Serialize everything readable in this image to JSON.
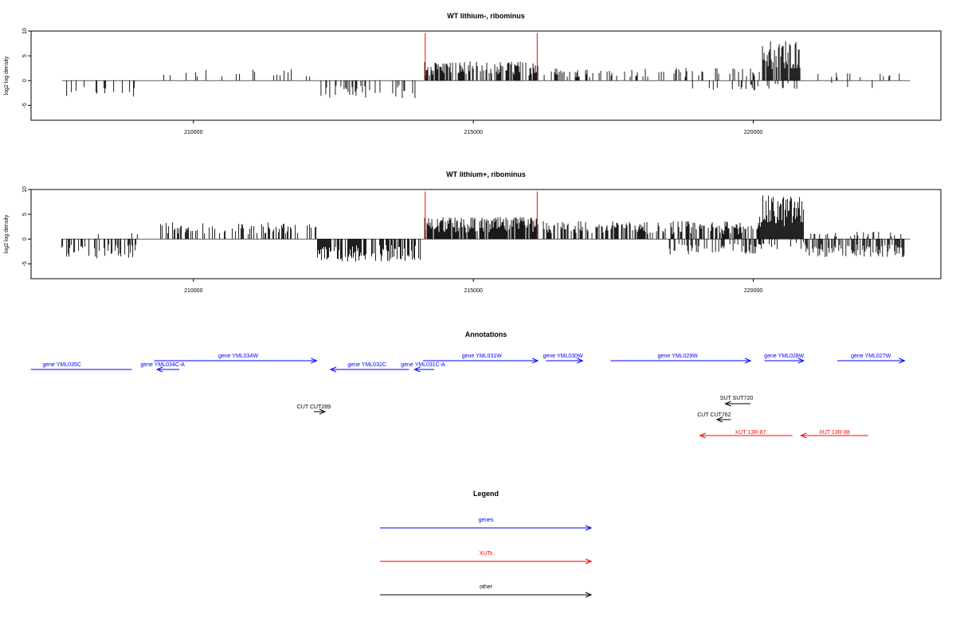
{
  "chart_data": [
    {
      "type": "bar",
      "title": "WT lithium-, ribominus",
      "ylabel": "log2 log density",
      "xlabel": "",
      "ylim": [
        -8,
        10
      ],
      "xlim": [
        207100,
        223350
      ],
      "xticks": [
        "210000",
        "215000",
        "220000"
      ],
      "yticks": [
        "-5",
        "0",
        "5",
        "10"
      ],
      "markers": [
        214140,
        216140
      ],
      "series": [
        {
          "segments": [
            {
              "from": 207650,
              "to": 209000,
              "sign": -1,
              "amp": 2.6,
              "density": 0.5
            },
            {
              "from": 209400,
              "to": 212200,
              "sign": 1,
              "amp": 1.8,
              "density": 0.3
            },
            {
              "from": 212250,
              "to": 214050,
              "sign": -1,
              "amp": 2.8,
              "density": 0.6
            },
            {
              "from": 214130,
              "to": 216160,
              "sign": 1,
              "amp": 3.0,
              "density": 1.6
            },
            {
              "from": 216250,
              "to": 220150,
              "sign": 1,
              "amp": 2.0,
              "density": 0.55
            },
            {
              "from": 218900,
              "to": 220100,
              "sign": -1,
              "amp": 2.0,
              "density": 0.4
            },
            {
              "from": 220150,
              "to": 220850,
              "sign": 1,
              "amp": 6.5,
              "density": 2.2
            },
            {
              "from": 220250,
              "to": 220850,
              "sign": -1,
              "amp": 1.3,
              "density": 0.4
            },
            {
              "from": 220900,
              "to": 222700,
              "sign": 1,
              "amp": 1.4,
              "density": 0.25
            },
            {
              "from": 221100,
              "to": 222300,
              "sign": -1,
              "amp": 1.2,
              "density": 0.15
            }
          ]
        }
      ]
    },
    {
      "type": "bar",
      "title": "WT lithium+, ribominus",
      "ylabel": "log2 log density",
      "xlabel": "",
      "ylim": [
        -8,
        10
      ],
      "xlim": [
        207100,
        223350
      ],
      "xticks": [
        "210000",
        "215000",
        "220000"
      ],
      "yticks": [
        "-5",
        "0",
        "5",
        "10"
      ],
      "markers": [
        214140,
        216140
      ],
      "series": [
        {
          "segments": [
            {
              "from": 207650,
              "to": 209000,
              "sign": -1,
              "amp": 3.0,
              "density": 0.9
            },
            {
              "from": 208300,
              "to": 209000,
              "sign": 1,
              "amp": 1.2,
              "density": 0.2
            },
            {
              "from": 209400,
              "to": 212200,
              "sign": 1,
              "amp": 2.6,
              "density": 0.9
            },
            {
              "from": 212200,
              "to": 214050,
              "sign": -1,
              "amp": 3.5,
              "density": 1.6
            },
            {
              "from": 214130,
              "to": 216160,
              "sign": 1,
              "amp": 3.4,
              "density": 2.2
            },
            {
              "from": 216250,
              "to": 220100,
              "sign": 1,
              "amp": 2.8,
              "density": 1.5
            },
            {
              "from": 218500,
              "to": 220100,
              "sign": -1,
              "amp": 2.4,
              "density": 1.0
            },
            {
              "from": 220100,
              "to": 220900,
              "sign": 1,
              "amp": 6.8,
              "density": 3.0
            },
            {
              "from": 220100,
              "to": 220900,
              "sign": -1,
              "amp": 1.6,
              "density": 0.6
            },
            {
              "from": 220900,
              "to": 222700,
              "sign": -1,
              "amp": 2.8,
              "density": 1.5
            },
            {
              "from": 220900,
              "to": 222700,
              "sign": 1,
              "amp": 1.2,
              "density": 0.5
            }
          ]
        }
      ]
    }
  ],
  "annotations": {
    "title": "Annotations",
    "xlim": [
      207100,
      223350
    ],
    "features": [
      {
        "label": "gene YML035C",
        "type": "gene",
        "strand": "-",
        "start": 207100,
        "end": 208900,
        "row": 1,
        "label_at": 207650
      },
      {
        "label": "gene YML034C-A",
        "type": "gene",
        "strand": "-",
        "start": 209350,
        "end": 209750,
        "row": 1,
        "label_at": 209450
      },
      {
        "label": "gene YML034W",
        "type": "gene",
        "strand": "+",
        "start": 209300,
        "end": 212200,
        "row": 0,
        "label_at": 210800
      },
      {
        "label": "gene YML032C",
        "type": "gene",
        "strand": "-",
        "start": 212450,
        "end": 213850,
        "row": 1,
        "label_at": 213100
      },
      {
        "label": "gene YML031C-A",
        "type": "gene",
        "strand": "-",
        "start": 213950,
        "end": 214300,
        "row": 1,
        "label_at": 214100
      },
      {
        "label": "gene YML031W",
        "type": "gene",
        "strand": "+",
        "start": 214100,
        "end": 216150,
        "row": 0,
        "label_at": 215150
      },
      {
        "label": "gene YML030W",
        "type": "gene",
        "strand": "+",
        "start": 216300,
        "end": 216950,
        "row": 0,
        "label_at": 216600
      },
      {
        "label": "gene YML029W",
        "type": "gene",
        "strand": "+",
        "start": 217450,
        "end": 219950,
        "row": 0,
        "label_at": 218650
      },
      {
        "label": "gene YML028W",
        "type": "gene",
        "strand": "+",
        "start": 220200,
        "end": 220900,
        "row": 0,
        "label_at": 220550
      },
      {
        "label": "gene YML027W",
        "type": "gene",
        "strand": "+",
        "start": 221500,
        "end": 222700,
        "row": 0,
        "label_at": 222100
      },
      {
        "label": "CUT CUT289",
        "type": "other",
        "strand": "+",
        "start": 212150,
        "end": 212350,
        "row": 3,
        "label_at": 212150
      },
      {
        "label": "SUT SUT720",
        "type": "other",
        "strand": "-",
        "start": 219500,
        "end": 219950,
        "row": 2,
        "label_at": 219700
      },
      {
        "label": "CUT CUT762",
        "type": "other",
        "strand": "-",
        "start": 219350,
        "end": 219600,
        "row": 4,
        "label_at": 219300
      },
      {
        "label": "XUT 13R-87",
        "type": "xut",
        "strand": "-",
        "start": 219050,
        "end": 220700,
        "row": 5,
        "label_at": 219950
      },
      {
        "label": "XUT 13R-88",
        "type": "xut",
        "strand": "-",
        "start": 220850,
        "end": 222050,
        "row": 5,
        "label_at": 221450
      }
    ]
  },
  "legend": {
    "title": "Legend",
    "items": [
      {
        "label": "genes",
        "color": "#0000ff"
      },
      {
        "label": "XUTs",
        "color": "#ff0000"
      },
      {
        "label": "other",
        "color": "#000000"
      }
    ]
  },
  "colors": {
    "gene": "#0000ff",
    "xut": "#ff0000",
    "other": "#000000",
    "marker": "#ff0000",
    "bars": "#000000"
  }
}
